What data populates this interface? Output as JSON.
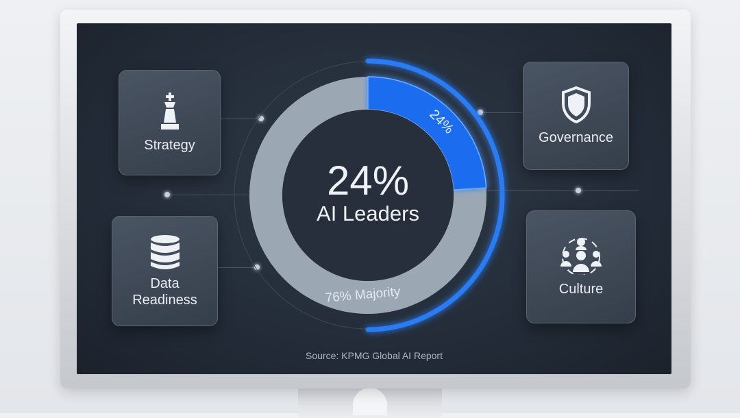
{
  "chart_data": {
    "type": "pie",
    "style": "donut",
    "slices": [
      {
        "label": "24%",
        "value": 24,
        "color": "#1a6cf0"
      },
      {
        "label": "76% Majority",
        "value": 76,
        "color": "#9ba8b4"
      }
    ],
    "center_value": "24%",
    "center_label": "AI Leaders"
  },
  "cards": {
    "strategy": {
      "label": "Strategy",
      "icon": "chess-king-icon"
    },
    "data": {
      "label": "Data Readiness",
      "line1": "Data",
      "line2": "Readiness",
      "icon": "database-icon"
    },
    "governance": {
      "label": "Governance",
      "icon": "shield-icon"
    },
    "culture": {
      "label": "Culture",
      "icon": "people-network-icon"
    }
  },
  "source": "Source: KPMG Global AI Report",
  "colors": {
    "accent": "#1a6cf0",
    "ring": "#9ba8b4",
    "screen": "#262f3b"
  }
}
